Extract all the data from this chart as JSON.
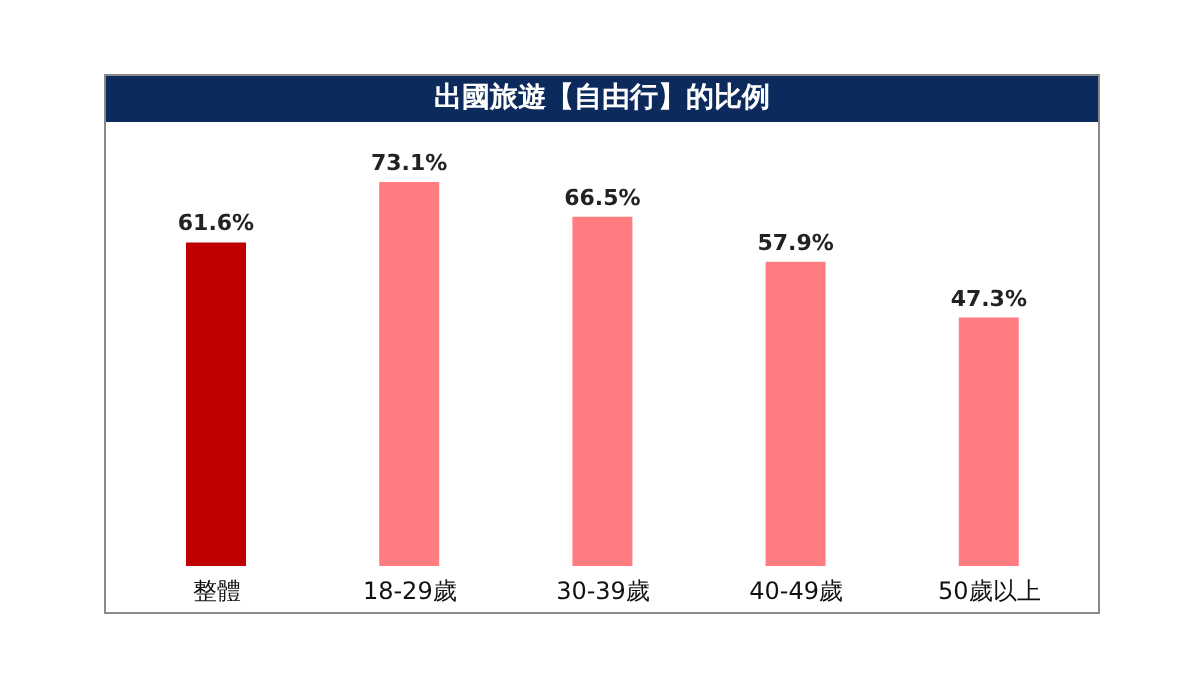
{
  "chart_data": {
    "type": "bar",
    "title": "出國旅遊【自由行】的比例",
    "categories": [
      "整體",
      "18-29歲",
      "30-39歲",
      "40-49歲",
      "50歲以上"
    ],
    "values": [
      61.6,
      73.1,
      66.5,
      57.9,
      47.3
    ],
    "colors": [
      "#c00000",
      "#ff7c80",
      "#ff7c80",
      "#ff7c80",
      "#ff7c80"
    ],
    "value_labels": [
      "61.6%",
      "73.1%",
      "66.5%",
      "57.9%",
      "47.3%"
    ],
    "grid": false,
    "legend": false
  }
}
